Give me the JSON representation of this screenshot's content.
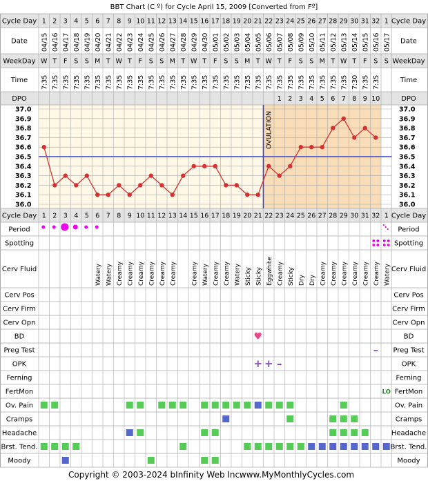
{
  "title": "BBT Chart (C º) for Cycle April 15, 2009  [Converted from Fº]",
  "footer": {
    "copyright": "Copyright © 2003-2024 bInfinity Web Inc.",
    "site": "www.MyMonthlyCycles.com"
  },
  "colors": {
    "background": "#ffffff",
    "grid": "#a9a9a9",
    "pre_ovulation_bg": "#fff8e6",
    "post_ovulation_bg": "#f8ddb8",
    "temp_line": "#d43232",
    "coverline": "#3344cc",
    "green_marker": "#55cc55",
    "blue_marker": "#5566cc",
    "period": "#ee00ee",
    "bd_heart": "#ee4488",
    "opk": "#8844cc",
    "fertmon": "#228822",
    "header_bg": "#e4e4e4"
  },
  "row_labels": {
    "cycle_day": "Cycle Day",
    "date": "Date",
    "weekday": "WeekDay",
    "time": "Time",
    "dpo": "DPO",
    "period": "Period",
    "spotting": "Spotting",
    "cerv_fluid": "Cerv Fluid",
    "cerv_pos": "Cerv Pos",
    "cerv_firm": "Cerv Firm",
    "cerv_opn": "Cerv Opn",
    "bd": "BD",
    "preg_test": "Preg Test",
    "opk": "OPK",
    "ferning": "Ferning",
    "fertmon": "FertMon",
    "ov_pain": "Ov. Pain",
    "cramps": "Cramps",
    "headache": "Headache",
    "brst_tend": "Brst. Tend.",
    "moody": "Moody"
  },
  "cycle_days": [
    "1",
    "2",
    "3",
    "4",
    "5",
    "6",
    "7",
    "8",
    "9",
    "10",
    "11",
    "12",
    "13",
    "14",
    "15",
    "16",
    "17",
    "18",
    "19",
    "20",
    "21",
    "22",
    "23",
    "24",
    "25",
    "26",
    "27",
    "28",
    "29",
    "30",
    "31",
    "32",
    "1"
  ],
  "dates": [
    "04/15",
    "04/16",
    "04/17",
    "04/18",
    "04/19",
    "04/20",
    "04/21",
    "04/22",
    "04/23",
    "04/24",
    "04/25",
    "04/26",
    "04/27",
    "04/28",
    "04/29",
    "04/30",
    "05/01",
    "05/02",
    "05/03",
    "05/04",
    "05/05",
    "05/06",
    "05/07",
    "05/08",
    "05/09",
    "05/10",
    "05/11",
    "05/12",
    "05/13",
    "05/14",
    "05/15",
    "05/16",
    "05/17"
  ],
  "weekdays": [
    "W",
    "T",
    "F",
    "S",
    "S",
    "M",
    "T",
    "W",
    "T",
    "F",
    "S",
    "S",
    "M",
    "T",
    "W",
    "T",
    "F",
    "S",
    "S",
    "M",
    "T",
    "W",
    "T",
    "F",
    "S",
    "S",
    "M",
    "T",
    "W",
    "T",
    "F",
    "S",
    "S"
  ],
  "times": [
    "7:35",
    "7:35",
    "7:35",
    "7:35",
    "7:35",
    "7:35",
    "7:35",
    "7:35",
    "7:35",
    "7:35",
    "7:35",
    "7:35",
    "7:35",
    "7:35",
    "7:35",
    "7:35",
    "7:35",
    "7:35",
    "7:35",
    "7:35",
    "7:35",
    "7:35",
    "7:35",
    "7:35",
    "7:35",
    "7:35",
    "7:35",
    "7:35",
    "7:35",
    "7:30",
    "7:35",
    "7:35",
    ""
  ],
  "dpo": [
    "",
    "",
    "",
    "",
    "",
    "",
    "",
    "",
    "",
    "",
    "",
    "",
    "",
    "",
    "",
    "",
    "",
    "",
    "",
    "",
    "",
    "",
    "1",
    "2",
    "3",
    "4",
    "5",
    "6",
    "7",
    "8",
    "9",
    "10",
    ""
  ],
  "cervical_fluid": [
    "",
    "",
    "",
    "",
    "",
    "Watery",
    "Watery",
    "Creamy",
    "Creamy",
    "Creamy",
    "Creamy",
    "Creamy",
    "Creamy",
    "",
    "Creamy",
    "Watery",
    "Creamy",
    "Creamy",
    "Watery",
    "Sticky",
    "Sticky",
    "Eggwhite",
    "Creamy",
    "Sticky",
    "Dry",
    "Dry",
    "Creamy",
    "Creamy",
    "Creamy",
    "Creamy",
    "Creamy",
    "Creamy",
    "Watery"
  ],
  "period": [
    "light",
    "light",
    "heavy",
    "medium",
    "light",
    "light",
    "",
    "",
    "",
    "",
    "",
    "",
    "",
    "",
    "",
    "",
    "",
    "",
    "",
    "",
    "",
    "",
    "",
    "",
    "",
    "",
    "",
    "",
    "",
    "",
    "",
    "",
    "spotting-dots"
  ],
  "spotting": [
    "",
    "",
    "",
    "",
    "",
    "",
    "",
    "",
    "",
    "",
    "",
    "",
    "",
    "",
    "",
    "",
    "",
    "",
    "",
    "",
    "",
    "",
    "",
    "",
    "",
    "",
    "",
    "",
    "",
    "",
    "",
    "dots",
    "dots"
  ],
  "bd": [
    21
  ],
  "preg_test": [
    {
      "day": 32,
      "symbol": "–"
    }
  ],
  "opk": [
    {
      "day": 21,
      "symbol": "+"
    },
    {
      "day": 22,
      "symbol": "+"
    },
    {
      "day": 23,
      "symbol": "–"
    }
  ],
  "fertmon": [
    {
      "day": 33,
      "label": "LO"
    }
  ],
  "symptoms": {
    "ov_pain": [
      {
        "day": 1,
        "c": "green"
      },
      {
        "day": 2,
        "c": "green"
      },
      {
        "day": 9,
        "c": "green"
      },
      {
        "day": 10,
        "c": "green"
      },
      {
        "day": 12,
        "c": "green"
      },
      {
        "day": 13,
        "c": "green"
      },
      {
        "day": 14,
        "c": "green"
      },
      {
        "day": 16,
        "c": "green"
      },
      {
        "day": 17,
        "c": "green"
      },
      {
        "day": 18,
        "c": "green"
      },
      {
        "day": 19,
        "c": "green"
      },
      {
        "day": 20,
        "c": "green"
      },
      {
        "day": 21,
        "c": "blue"
      },
      {
        "day": 22,
        "c": "green"
      },
      {
        "day": 23,
        "c": "green"
      },
      {
        "day": 24,
        "c": "green"
      },
      {
        "day": 29,
        "c": "green"
      }
    ],
    "cramps": [
      {
        "day": 18,
        "c": "blue"
      },
      {
        "day": 24,
        "c": "green"
      },
      {
        "day": 28,
        "c": "green"
      },
      {
        "day": 29,
        "c": "green"
      },
      {
        "day": 30,
        "c": "green"
      }
    ],
    "headache": [
      {
        "day": 9,
        "c": "blue"
      },
      {
        "day": 10,
        "c": "green"
      },
      {
        "day": 16,
        "c": "green"
      },
      {
        "day": 17,
        "c": "green"
      },
      {
        "day": 28,
        "c": "green"
      },
      {
        "day": 29,
        "c": "green"
      },
      {
        "day": 30,
        "c": "green"
      },
      {
        "day": 31,
        "c": "green"
      }
    ],
    "brst_tend": [
      {
        "day": 1,
        "c": "green"
      },
      {
        "day": 2,
        "c": "green"
      },
      {
        "day": 3,
        "c": "green"
      },
      {
        "day": 4,
        "c": "green"
      },
      {
        "day": 14,
        "c": "green"
      },
      {
        "day": 20,
        "c": "green"
      },
      {
        "day": 21,
        "c": "green"
      },
      {
        "day": 22,
        "c": "green"
      },
      {
        "day": 23,
        "c": "green"
      },
      {
        "day": 24,
        "c": "green"
      },
      {
        "day": 25,
        "c": "green"
      },
      {
        "day": 26,
        "c": "blue"
      },
      {
        "day": 27,
        "c": "blue"
      },
      {
        "day": 28,
        "c": "blue"
      },
      {
        "day": 29,
        "c": "blue"
      },
      {
        "day": 30,
        "c": "blue"
      },
      {
        "day": 31,
        "c": "blue"
      },
      {
        "day": 32,
        "c": "blue"
      },
      {
        "day": 33,
        "c": "blue"
      }
    ],
    "moody": [
      {
        "day": 3,
        "c": "blue"
      },
      {
        "day": 11,
        "c": "green"
      },
      {
        "day": 16,
        "c": "green"
      },
      {
        "day": 17,
        "c": "green"
      }
    ]
  },
  "chart_data": {
    "type": "line",
    "title": "BBT Chart (C º) for Cycle April 15, 2009  [Converted from Fº]",
    "x": [
      1,
      2,
      3,
      4,
      5,
      6,
      7,
      8,
      9,
      10,
      11,
      12,
      13,
      14,
      15,
      16,
      17,
      18,
      19,
      20,
      21,
      22,
      23,
      24,
      25,
      26,
      27,
      28,
      29,
      30,
      31,
      32
    ],
    "series": [
      {
        "values": [
          36.6,
          36.2,
          36.3,
          36.2,
          36.3,
          36.1,
          36.1,
          36.2,
          36.1,
          36.2,
          36.3,
          36.2,
          36.1,
          36.3,
          36.4,
          36.4,
          36.4,
          36.2,
          36.2,
          36.1,
          36.1,
          36.4,
          36.3,
          36.4,
          36.6,
          36.6,
          36.6,
          36.8,
          36.9,
          36.7,
          36.8,
          36.7
        ]
      }
    ],
    "ylim": [
      36.0,
      37.0
    ],
    "y_ticks": [
      "37.0",
      "36.9",
      "36.8",
      "36.7",
      "36.6",
      "36.5",
      "36.4",
      "36.3",
      "36.2",
      "36.1",
      "36.0"
    ],
    "coverline": 36.5,
    "ovulation_day": 22,
    "ovulation_label": "OVULATION",
    "grid": true
  }
}
